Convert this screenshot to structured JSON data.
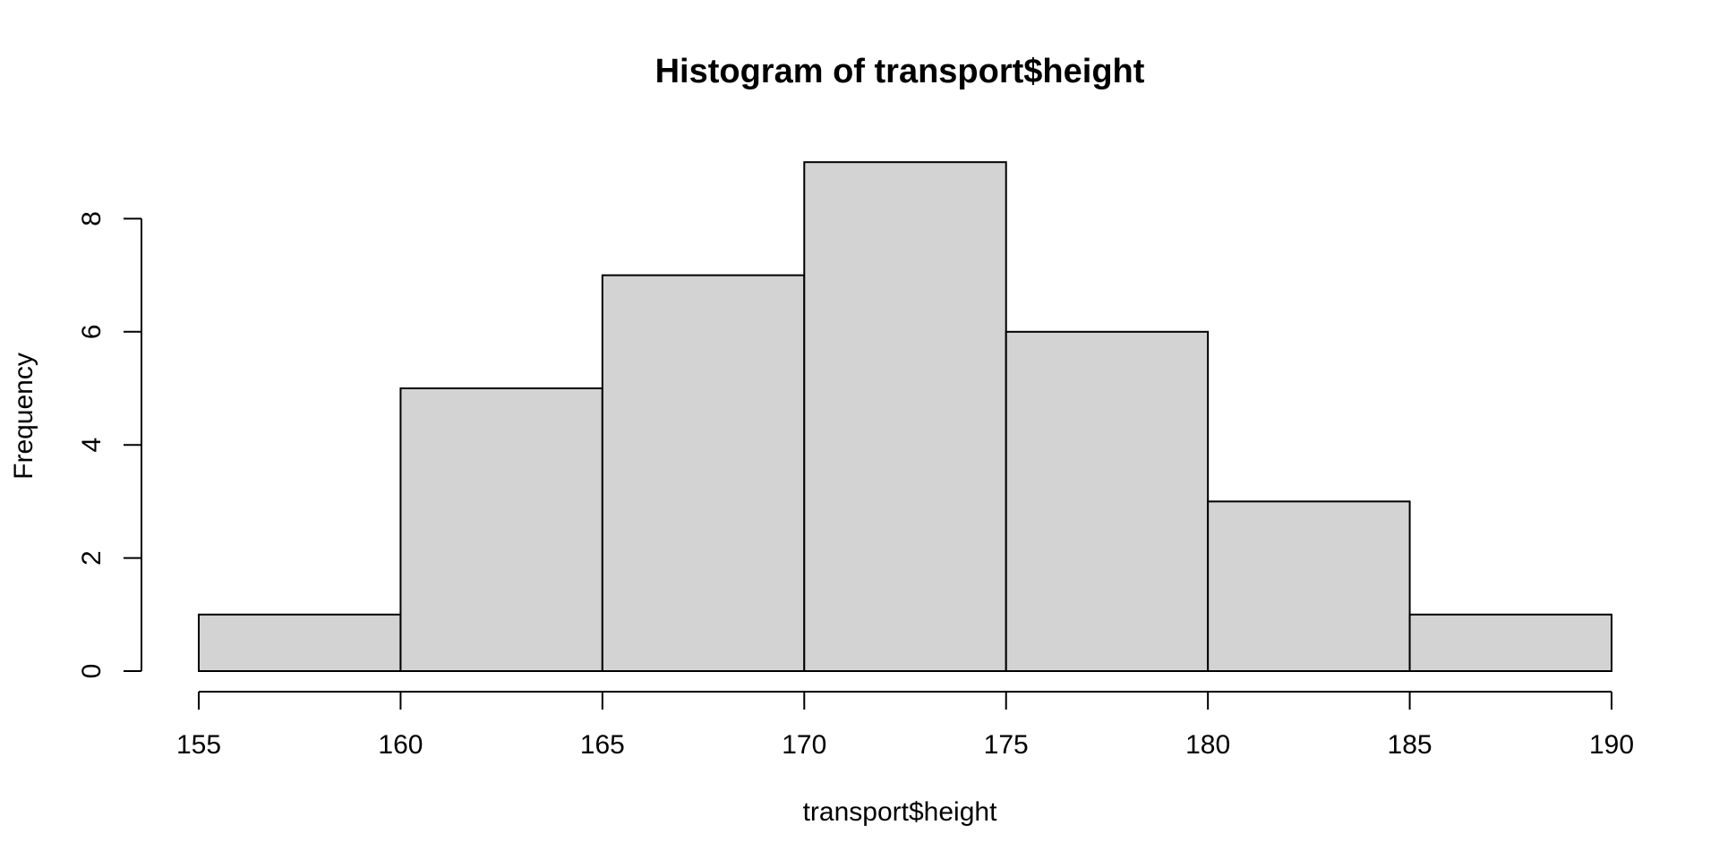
{
  "chart_data": {
    "type": "bar",
    "title": "Histogram of transport$height",
    "xlabel": "transport$height",
    "ylabel": "Frequency",
    "breaks": [
      155,
      160,
      165,
      170,
      175,
      180,
      185,
      190
    ],
    "values": [
      1,
      5,
      7,
      9,
      6,
      3,
      1
    ],
    "xlim": [
      155,
      190
    ],
    "ylim": [
      0,
      9
    ],
    "x_ticks": [
      155,
      160,
      165,
      170,
      175,
      180,
      185,
      190
    ],
    "y_ticks": [
      0,
      2,
      4,
      6,
      8
    ],
    "bar_color": "#d3d3d3",
    "edge_color": "#000000",
    "grid": false
  }
}
